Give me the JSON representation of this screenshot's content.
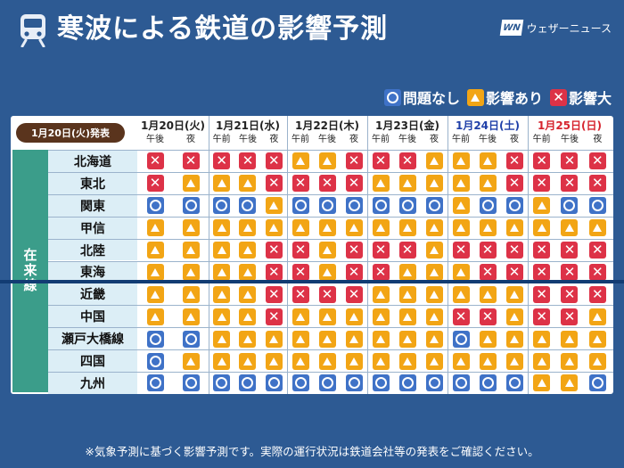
{
  "title": "寒波による鉄道の影響予測",
  "brand": {
    "logo": "WN",
    "name": "ウェザーニュース"
  },
  "legend": [
    {
      "icon": "circle-icon",
      "label": "問題なし"
    },
    {
      "icon": "triangle-icon",
      "label": "影響あり"
    },
    {
      "icon": "cross-icon",
      "label": "影響大"
    }
  ],
  "issued": "1月20日(火)発表",
  "category": "在来線",
  "days": [
    {
      "label": "1月20日(火)",
      "color": "#222222",
      "slots": [
        "午後",
        "夜"
      ]
    },
    {
      "label": "1月21日(水)",
      "color": "#222222",
      "slots": [
        "午前",
        "午後",
        "夜"
      ]
    },
    {
      "label": "1月22日(木)",
      "color": "#222222",
      "slots": [
        "午前",
        "午後",
        "夜"
      ]
    },
    {
      "label": "1月23日(金)",
      "color": "#222222",
      "slots": [
        "午前",
        "午後",
        "夜"
      ]
    },
    {
      "label": "1月24日(土)",
      "color": "#1f3fa8",
      "slots": [
        "午前",
        "午後",
        "夜"
      ]
    },
    {
      "label": "1月25日(日)",
      "color": "#d6242e",
      "slots": [
        "午前",
        "午後",
        "夜"
      ]
    }
  ],
  "rows": [
    {
      "region": "北海道",
      "values": [
        "x",
        "x",
        "x",
        "x",
        "x",
        "t",
        "t",
        "x",
        "x",
        "x",
        "t",
        "t",
        "t",
        "x",
        "x",
        "x",
        "x"
      ]
    },
    {
      "region": "東北",
      "values": [
        "x",
        "t",
        "t",
        "t",
        "x",
        "x",
        "x",
        "x",
        "t",
        "t",
        "t",
        "t",
        "t",
        "x",
        "x",
        "x",
        "x"
      ]
    },
    {
      "region": "関東",
      "values": [
        "o",
        "o",
        "o",
        "o",
        "t",
        "o",
        "o",
        "o",
        "o",
        "o",
        "o",
        "t",
        "o",
        "o",
        "t",
        "o",
        "o"
      ]
    },
    {
      "region": "甲信",
      "values": [
        "t",
        "t",
        "t",
        "t",
        "t",
        "t",
        "t",
        "t",
        "t",
        "t",
        "t",
        "t",
        "t",
        "t",
        "t",
        "t",
        "t"
      ]
    },
    {
      "region": "北陸",
      "values": [
        "t",
        "t",
        "t",
        "t",
        "x",
        "x",
        "t",
        "x",
        "x",
        "x",
        "t",
        "x",
        "x",
        "x",
        "x",
        "x",
        "x"
      ]
    },
    {
      "region": "東海",
      "values": [
        "t",
        "t",
        "t",
        "t",
        "x",
        "x",
        "t",
        "x",
        "x",
        "t",
        "t",
        "t",
        "x",
        "x",
        "x",
        "x",
        "x"
      ]
    },
    {
      "region": "近畿",
      "values": [
        "t",
        "t",
        "t",
        "t",
        "x",
        "x",
        "x",
        "x",
        "t",
        "t",
        "t",
        "t",
        "t",
        "t",
        "x",
        "x",
        "x"
      ]
    },
    {
      "region": "中国",
      "values": [
        "t",
        "t",
        "t",
        "t",
        "x",
        "t",
        "t",
        "t",
        "t",
        "t",
        "t",
        "x",
        "x",
        "t",
        "x",
        "x",
        "t"
      ]
    },
    {
      "region": "瀬戸大橋線",
      "values": [
        "o",
        "o",
        "t",
        "t",
        "t",
        "t",
        "t",
        "t",
        "t",
        "t",
        "t",
        "o",
        "t",
        "t",
        "t",
        "t",
        "t"
      ]
    },
    {
      "region": "四国",
      "values": [
        "o",
        "t",
        "t",
        "t",
        "t",
        "t",
        "t",
        "t",
        "t",
        "t",
        "t",
        "t",
        "t",
        "t",
        "t",
        "t",
        "t"
      ]
    },
    {
      "region": "九州",
      "values": [
        "o",
        "o",
        "o",
        "o",
        "o",
        "o",
        "o",
        "o",
        "o",
        "o",
        "o",
        "o",
        "o",
        "o",
        "t",
        "t",
        "o"
      ]
    }
  ],
  "footnote": "※気象予測に基づく影響予測です。実際の運行状況は鉄道会社等の発表をご確認ください。",
  "colors": {
    "background": "#2d5a93",
    "issued_bg": "#5a341d",
    "region_bg": "#dceef6",
    "category_bg": "#3b9d8a",
    "circle": "#3f72c7",
    "triangle": "#f2a515",
    "cross": "#dd3247",
    "divider": "#123c73"
  }
}
